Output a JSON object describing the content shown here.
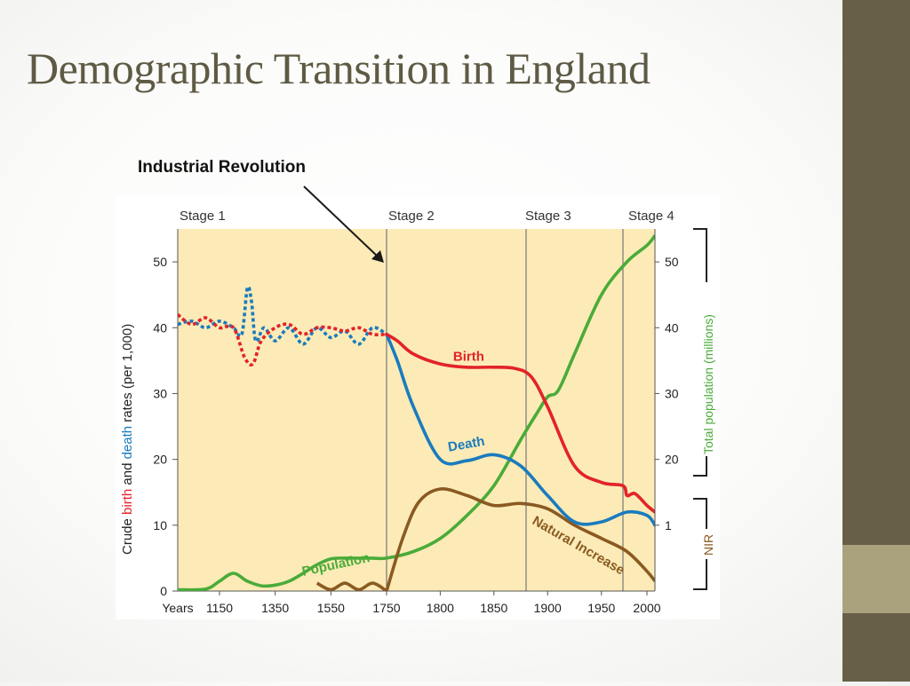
{
  "slide": {
    "title": "Demographic Transition in England"
  },
  "annotation": {
    "text": "Industrial Revolution"
  },
  "colors": {
    "plot_bg": "#fcebb6",
    "birth": "#e32229",
    "death": "#1a7bbf",
    "population": "#4aab39",
    "natural_increase": "#8a5a22",
    "sidebar": "#675f48",
    "sidebar_accent": "#a9a27d",
    "title": "#5e5a44"
  },
  "chart_data": {
    "type": "line",
    "stages": [
      "Stage 1",
      "Stage 2",
      "Stage 3",
      "Stage 4"
    ],
    "stage_boundaries_years": [
      1750,
      1880,
      1970
    ],
    "x_tick_labels": [
      "Years",
      "1150",
      "1350",
      "1550",
      "1750",
      "1800",
      "1850",
      "1900",
      "1950",
      "2000"
    ],
    "x_ticks": [
      {
        "year": 1150,
        "label": "1150"
      },
      {
        "year": 1350,
        "label": "1350"
      },
      {
        "year": 1550,
        "label": "1550"
      },
      {
        "year": 1750,
        "label": "1750"
      },
      {
        "year": 1800,
        "label": "1800"
      },
      {
        "year": 1850,
        "label": "1850"
      },
      {
        "year": 1900,
        "label": "1900"
      },
      {
        "year": 1950,
        "label": "1950"
      },
      {
        "year": 2000,
        "label": "2000"
      }
    ],
    "x_axis_note": "non-linear time axis: 1000–1750 compressed, 1750–2010 expanded",
    "x_range": [
      1000,
      2010
    ],
    "y_left": {
      "label_parts": [
        "Crude ",
        "birth",
        " and ",
        "death",
        " rates (per 1,000)"
      ],
      "ticks": [
        0,
        10,
        20,
        30,
        40,
        50
      ],
      "ylim": [
        0,
        55
      ]
    },
    "y_right_population": {
      "label": "Total population (millions)",
      "ticks": [
        20,
        30,
        40,
        50
      ],
      "ylim": [
        0,
        55
      ]
    },
    "y_right_nir": {
      "label": "NIR",
      "ticks": [
        1
      ]
    },
    "series": [
      {
        "name": "Birth",
        "style": "dotted-before-1750",
        "x": [
          1000,
          1050,
          1100,
          1150,
          1200,
          1240,
          1270,
          1300,
          1350,
          1400,
          1450,
          1500,
          1550,
          1600,
          1650,
          1700,
          1750,
          1760,
          1775,
          1800,
          1825,
          1850,
          1870,
          1885,
          1900,
          1925,
          1950,
          1970,
          1975,
          1985,
          2000,
          2010
        ],
        "y": [
          42,
          40.5,
          41.5,
          40,
          40,
          35.5,
          34.5,
          38,
          40,
          40.5,
          39,
          40,
          40,
          39.5,
          40,
          39,
          39,
          38,
          36,
          34.5,
          34,
          34,
          33.8,
          32.5,
          28,
          19,
          16.5,
          16,
          14.5,
          14.8,
          13,
          12
        ]
      },
      {
        "name": "Death",
        "style": "dotted-before-1750",
        "x": [
          1000,
          1050,
          1100,
          1150,
          1200,
          1230,
          1250,
          1265,
          1280,
          1310,
          1350,
          1400,
          1450,
          1500,
          1550,
          1600,
          1650,
          1700,
          1750,
          1760,
          1775,
          1800,
          1825,
          1850,
          1875,
          1900,
          1925,
          1950,
          1975,
          2000,
          2010
        ],
        "y": [
          40.5,
          41,
          40,
          41,
          40,
          39,
          46,
          44,
          38,
          40,
          38,
          40,
          37.5,
          40,
          38.5,
          39.5,
          37.5,
          40,
          39,
          35,
          28,
          20,
          19.8,
          20.7,
          19,
          14.5,
          10.5,
          10.5,
          12,
          11.5,
          10
        ]
      },
      {
        "name": "Population",
        "x": [
          1000,
          1100,
          1150,
          1200,
          1250,
          1300,
          1350,
          1400,
          1450,
          1500,
          1550,
          1600,
          1650,
          1700,
          1750,
          1775,
          1800,
          1825,
          1850,
          1875,
          1890,
          1900,
          1910,
          1925,
          1950,
          1975,
          2000,
          2010
        ],
        "y": [
          0.2,
          0.3,
          1.5,
          2.7,
          1.5,
          0.8,
          0.9,
          1.5,
          2.7,
          4,
          4.9,
          5,
          5,
          5,
          5,
          6,
          8,
          11.5,
          16,
          23,
          27,
          29.5,
          30.5,
          36,
          45,
          50,
          52.5,
          54
        ]
      },
      {
        "name": "Natural Increase",
        "style": "wavy-before-1750",
        "x": [
          1500,
          1550,
          1600,
          1650,
          1700,
          1750,
          1765,
          1780,
          1800,
          1825,
          1850,
          1875,
          1900,
          1925,
          1950,
          1975,
          2000,
          2010
        ],
        "y": [
          1.2,
          0.2,
          1.2,
          0.2,
          1.2,
          0,
          8,
          13.5,
          15.5,
          14.5,
          13,
          13.3,
          12.5,
          10,
          8,
          6,
          3,
          1.5
        ]
      }
    ],
    "annotations": [
      {
        "text": "Birth",
        "series": "Birth"
      },
      {
        "text": "Death",
        "series": "Death"
      },
      {
        "text": "Population",
        "series": "Population"
      },
      {
        "text": "Natural Increase",
        "series": "Natural Increase"
      }
    ]
  }
}
